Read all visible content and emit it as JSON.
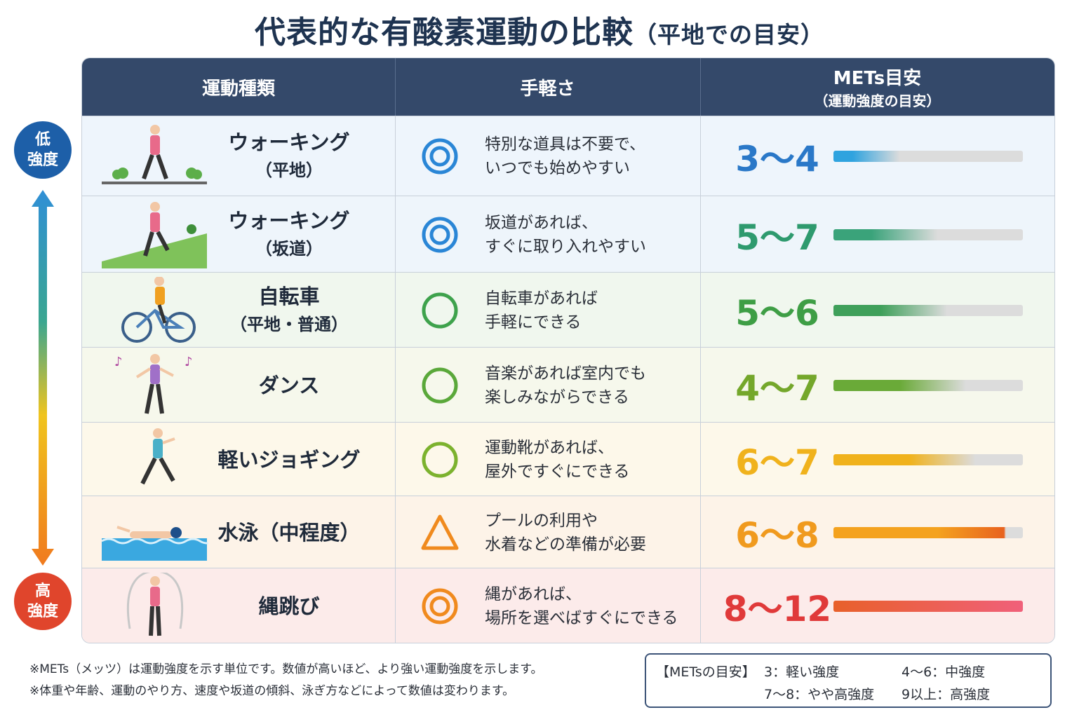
{
  "title": {
    "main": "代表的な有酸素運動の比較",
    "sub": "（平地での目安）"
  },
  "header": {
    "col1": "運動種類",
    "col2": "手軽さ",
    "col3_line1": "METs目安",
    "col3_line2": "（運動強度の目安）"
  },
  "axis": {
    "low": "低\n強度",
    "high": "高\n強度",
    "low_l1": "低",
    "low_l2": "強度",
    "high_l1": "高",
    "high_l2": "強度"
  },
  "rows": [
    {
      "name1": "ウォーキング",
      "name2": "（平地）",
      "mark": "double-circle",
      "mark_color": "#2a86d6",
      "desc1": "特別な道具は不要で、",
      "desc2": "いつでも始めやすい",
      "mets": "3〜4",
      "mets_color": "#2a78c8",
      "bar_from": "#2fa3df",
      "bar_to": "#dcdcdc",
      "bar_level": 0.35,
      "bg": "#eef5fc",
      "icon": "walking-flat-icon"
    },
    {
      "name1": "ウォーキング",
      "name2": "（坂道）",
      "mark": "double-circle",
      "mark_color": "#2a86d6",
      "desc1": "坂道があれば、",
      "desc2": "すぐに取り入れやすい",
      "mets": "5〜7",
      "mets_color": "#2e9a6e",
      "bar_from": "#3aa37a",
      "bar_to": "#dcdcdc",
      "bar_level": 0.55,
      "bg": "#eef5fb",
      "icon": "walking-slope-icon"
    },
    {
      "name1": "自転車",
      "name2": "（平地・普通）",
      "mark": "circle",
      "mark_color": "#3ea24c",
      "desc1": "自転車があれば",
      "desc2": "手軽にできる",
      "mets": "5〜6",
      "mets_color": "#3e9e45",
      "bar_from": "#3fa05a",
      "bar_to": "#dcdcdc",
      "bar_level": 0.6,
      "bg": "#f0f7ee",
      "icon": "bicycle-icon"
    },
    {
      "name1": "ダンス",
      "name2": "",
      "mark": "circle",
      "mark_color": "#5aa83a",
      "desc1": "音楽があれば室内でも",
      "desc2": "楽しみながらできる",
      "mets": "4〜7",
      "mets_color": "#74a72b",
      "bar_from": "#6aaa38",
      "bar_to": "#dcdcdc",
      "bar_level": 0.7,
      "bg": "#f6f8ec",
      "icon": "dance-icon"
    },
    {
      "name1": "軽いジョギング",
      "name2": "",
      "mark": "circle",
      "mark_color": "#7cb22e",
      "desc1": "運動靴があれば、",
      "desc2": "屋外ですぐにできる",
      "mets": "6〜7",
      "mets_color": "#f0b21c",
      "bar_from": "#f0b21c",
      "bar_to": "#dcdcdc",
      "bar_level": 0.75,
      "bg": "#fdf8ea",
      "icon": "jogging-icon"
    },
    {
      "name1": "水泳（中程度）",
      "name2": "",
      "mark": "triangle",
      "mark_color": "#f08a1e",
      "desc1": "プールの利用や",
      "desc2": "水着などの準備が必要",
      "mets": "6〜8",
      "mets_color": "#f09a1e",
      "bar_from": "#f4a21e",
      "bar_to": "#e8621e",
      "bar_level": 0.9,
      "bg": "#fdf3e8",
      "icon": "swimming-icon"
    },
    {
      "name1": "縄跳び",
      "name2": "",
      "mark": "double-circle",
      "mark_color": "#f08a1e",
      "desc1": "縄があれば、",
      "desc2": "場所を選べばすぐにできる",
      "mets": "8〜12",
      "mets_color": "#e03a3a",
      "bar_from": "#e8602a",
      "bar_to": "#f0607a",
      "bar_level": 1.0,
      "bg": "#fcebea",
      "icon": "jump-rope-icon"
    }
  ],
  "notes": {
    "line1": "※METs（メッツ）は運動強度を示す単位です。数値が高いほど、より強い運動強度を示します。",
    "line2": "※体重や年齢、運動のやり方、速度や坂道の傾斜、泳ぎ方などによって数値は変わります。"
  },
  "legend": {
    "label": "【METsの目安】",
    "a": "3：軽い強度",
    "b": "4〜6：中強度",
    "c": "7〜8：やや高強度",
    "d": "9以上：高強度"
  },
  "colors": {
    "header_bg": "#34496a",
    "low_bubble": "#1d5fa8",
    "high_bubble": "#e0452c"
  }
}
